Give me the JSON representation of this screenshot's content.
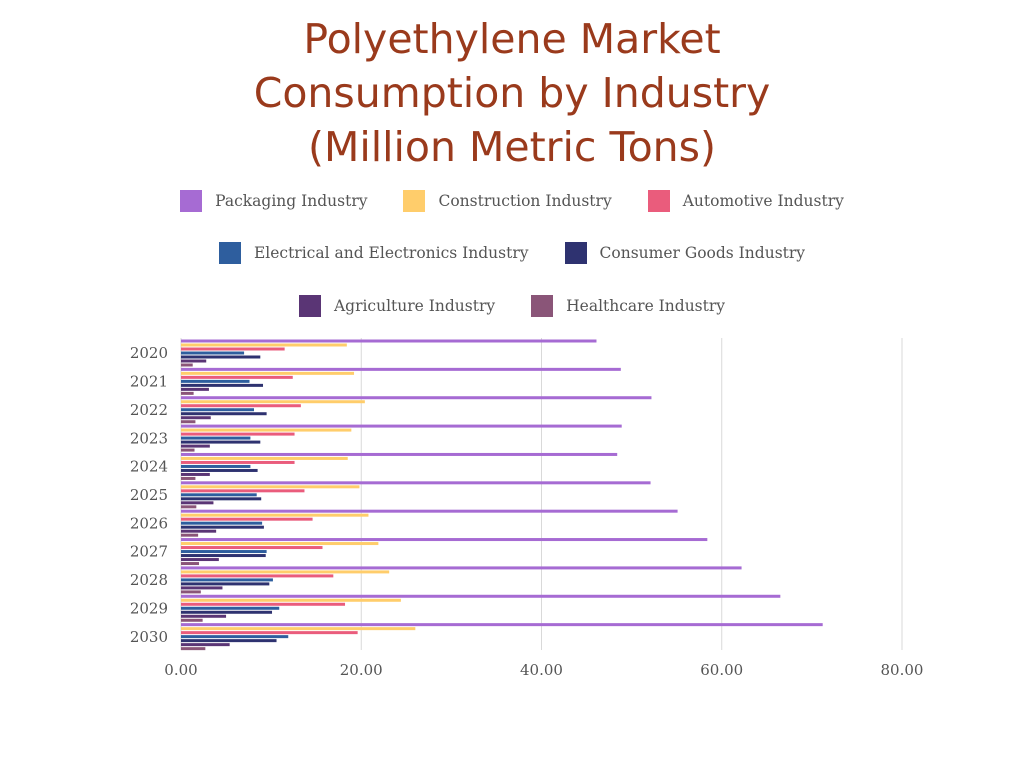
{
  "title_lines": [
    "Polyethylene Market",
    "Consumption by Industry",
    "(Million Metric Tons)"
  ],
  "colors": {
    "title": "#9a3a1c",
    "grid": "#d9d9d9",
    "axis_text": "#555555"
  },
  "chart_data": {
    "type": "bar",
    "orientation": "horizontal",
    "title": "Polyethylene Market Consumption by Industry (Million Metric Tons)",
    "categories": [
      "2020",
      "2021",
      "2022",
      "2023",
      "2024",
      "2025",
      "2026",
      "2027",
      "2028",
      "2029",
      "2030"
    ],
    "xlim": [
      0,
      80
    ],
    "x_ticks": [
      "0.00",
      "20.00",
      "40.00",
      "60.00",
      "80.00"
    ],
    "grid": true,
    "legend_position": "top",
    "series": [
      {
        "name": "Packaging Industry",
        "color": "#a66bd3",
        "values": [
          46.1,
          48.8,
          52.2,
          48.9,
          48.4,
          52.1,
          55.1,
          58.4,
          62.2,
          66.5,
          71.2
        ]
      },
      {
        "name": "Construction Industry",
        "color": "#ffcd6b",
        "values": [
          18.4,
          19.2,
          20.4,
          18.9,
          18.5,
          19.8,
          20.8,
          21.9,
          23.1,
          24.4,
          26.0
        ]
      },
      {
        "name": "Automotive Industry",
        "color": "#ea5c7c",
        "values": [
          11.5,
          12.4,
          13.3,
          12.6,
          12.6,
          13.7,
          14.6,
          15.7,
          16.9,
          18.2,
          19.6
        ]
      },
      {
        "name": "Electrical and Electronics Industry",
        "color": "#2e5e9e",
        "values": [
          7.0,
          7.6,
          8.1,
          7.7,
          7.7,
          8.4,
          9.0,
          9.5,
          10.2,
          10.9,
          11.9
        ]
      },
      {
        "name": "Consumer Goods Industry",
        "color": "#2e3270",
        "values": [
          8.8,
          9.1,
          9.5,
          8.8,
          8.5,
          8.9,
          9.2,
          9.4,
          9.8,
          10.1,
          10.6
        ]
      },
      {
        "name": "Agriculture Industry",
        "color": "#5a3575",
        "values": [
          2.8,
          3.1,
          3.3,
          3.2,
          3.2,
          3.6,
          3.9,
          4.2,
          4.6,
          5.0,
          5.4
        ]
      },
      {
        "name": "Healthcare Industry",
        "color": "#8a5578",
        "values": [
          1.3,
          1.4,
          1.6,
          1.5,
          1.6,
          1.7,
          1.9,
          2.0,
          2.2,
          2.4,
          2.7
        ]
      }
    ]
  }
}
